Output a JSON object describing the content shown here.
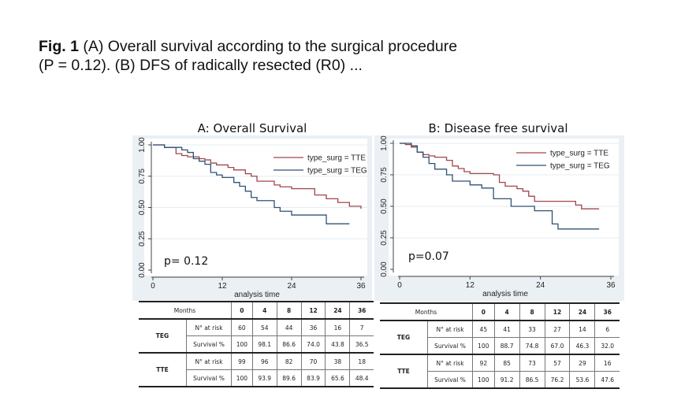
{
  "caption": {
    "label": "Fig. 1",
    "line1": " (A) Overall survival according to the surgical procedure",
    "line2": "(P = 0.12). (B) DFS of radically resected (R0) ..."
  },
  "colors": {
    "tte": "#a0464c",
    "teg": "#2f5275",
    "panel_bg": "#eaf0f4",
    "plot_bg": "#ffffff",
    "grid": "#e6ecf0"
  },
  "chart_data": [
    {
      "type": "line",
      "subtype": "kaplan-meier step",
      "title": "A: Overall Survival",
      "xlabel": "analysis time",
      "ylabel": "",
      "xlim": [
        0,
        36
      ],
      "ylim": [
        0,
        1
      ],
      "xticks": [
        "0",
        "12",
        "24",
        "36"
      ],
      "yticks": [
        "0.00",
        "0.25",
        "0.50",
        "0.75",
        "1.00"
      ],
      "grid": true,
      "legend_position": "top-right",
      "annotation": "p= 0.12",
      "series": [
        {
          "name": "type_surg = TTE",
          "key": "tte",
          "x": [
            0,
            2,
            4,
            5,
            6,
            8,
            9,
            10,
            11,
            13,
            14,
            16,
            17,
            18,
            21,
            22,
            24,
            28,
            30,
            32,
            34,
            36
          ],
          "y": [
            1.0,
            0.98,
            0.93,
            0.915,
            0.905,
            0.89,
            0.88,
            0.855,
            0.84,
            0.82,
            0.8,
            0.77,
            0.75,
            0.71,
            0.68,
            0.665,
            0.65,
            0.6,
            0.57,
            0.54,
            0.51,
            0.49
          ],
          "end": 36
        },
        {
          "name": "type_surg = TEG",
          "key": "teg",
          "x": [
            0,
            2,
            5,
            6,
            7,
            8,
            9,
            10,
            11,
            12,
            14,
            15,
            16,
            17,
            18,
            21,
            22,
            24,
            30
          ],
          "y": [
            1.0,
            0.98,
            0.96,
            0.94,
            0.89,
            0.87,
            0.845,
            0.78,
            0.76,
            0.74,
            0.7,
            0.67,
            0.63,
            0.58,
            0.555,
            0.5,
            0.47,
            0.44,
            0.37
          ],
          "end": 34
        }
      ],
      "risk_table": {
        "header_label": "Months",
        "months": [
          "0",
          "4",
          "8",
          "12",
          "24",
          "36"
        ],
        "groups": [
          {
            "name": "TEG",
            "rows": [
              {
                "label": "N° at risk",
                "values": [
                  "60",
                  "54",
                  "44",
                  "36",
                  "16",
                  "7"
                ]
              },
              {
                "label": "Survival %",
                "values": [
                  "100",
                  "98.1",
                  "86.6",
                  "74.0",
                  "43.8",
                  "36.5"
                ]
              }
            ]
          },
          {
            "name": "TTE",
            "rows": [
              {
                "label": "N° at risk",
                "values": [
                  "99",
                  "96",
                  "82",
                  "70",
                  "38",
                  "18"
                ]
              },
              {
                "label": "Survival %",
                "values": [
                  "100",
                  "93.9",
                  "89.6",
                  "83.9",
                  "65.6",
                  "48.4"
                ]
              }
            ]
          }
        ]
      }
    },
    {
      "type": "line",
      "subtype": "kaplan-meier step",
      "title": "B: Disease free survival",
      "xlabel": "analysis time",
      "ylabel": "",
      "xlim": [
        0,
        36
      ],
      "ylim": [
        0,
        1
      ],
      "xticks": [
        "0",
        "12",
        "24",
        "36"
      ],
      "yticks": [
        "0.00",
        "0.25",
        "0.50",
        "0.75",
        "1.00"
      ],
      "grid": true,
      "legend_position": "top-right",
      "annotation": "p=0.07",
      "series": [
        {
          "name": "type_surg = TTE",
          "key": "tte",
          "x": [
            0,
            1,
            2,
            3,
            4,
            5,
            6,
            8,
            9,
            10,
            11,
            12,
            16,
            17,
            18,
            20,
            21,
            22,
            23,
            30,
            31
          ],
          "y": [
            1.0,
            0.99,
            0.97,
            0.93,
            0.91,
            0.9,
            0.89,
            0.865,
            0.82,
            0.8,
            0.775,
            0.76,
            0.75,
            0.69,
            0.66,
            0.64,
            0.62,
            0.58,
            0.54,
            0.51,
            0.48
          ],
          "end": 34
        },
        {
          "name": "type_surg = TEG",
          "key": "teg",
          "x": [
            0,
            2,
            3,
            4,
            5,
            6,
            8,
            9,
            12,
            14,
            16,
            19,
            23,
            26,
            27
          ],
          "y": [
            1.0,
            0.98,
            0.93,
            0.89,
            0.84,
            0.795,
            0.75,
            0.7,
            0.67,
            0.645,
            0.56,
            0.5,
            0.465,
            0.36,
            0.32
          ],
          "end": 34
        }
      ],
      "risk_table": {
        "header_label": "Months",
        "months": [
          "0",
          "4",
          "8",
          "12",
          "24",
          "36"
        ],
        "groups": [
          {
            "name": "TEG",
            "rows": [
              {
                "label": "N° at risk",
                "values": [
                  "45",
                  "41",
                  "33",
                  "27",
                  "14",
                  "6"
                ]
              },
              {
                "label": "Survival %",
                "values": [
                  "100",
                  "88.7",
                  "74.8",
                  "67.0",
                  "46.3",
                  "32.0"
                ]
              }
            ]
          },
          {
            "name": "TTE",
            "rows": [
              {
                "label": "N° at risk",
                "values": [
                  "92",
                  "85",
                  "73",
                  "57",
                  "29",
                  "16"
                ]
              },
              {
                "label": "Survival %",
                "values": [
                  "100",
                  "91.2",
                  "86.5",
                  "76.2",
                  "53.6",
                  "47.6"
                ]
              }
            ]
          }
        ]
      }
    }
  ]
}
